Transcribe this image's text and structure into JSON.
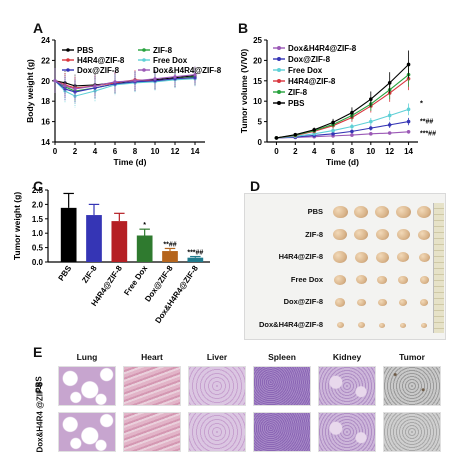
{
  "panels": {
    "A": "A",
    "B": "B",
    "C": "C",
    "D": "D",
    "E": "E"
  },
  "groups": [
    "PBS",
    "ZIF-8",
    "H4R4@ZIF-8",
    "Free Dox",
    "Dox@ZIF-8",
    "Dox&H4R4@ZIF-8"
  ],
  "colors": {
    "PBS": "#000000",
    "ZIF-8": "#27a23d",
    "H4R4@ZIF-8": "#d9363e",
    "Free Dox": "#5fd0d6",
    "Dox@ZIF-8": "#3535b5",
    "Dox&H4R4@ZIF-8": "#9b59b6"
  },
  "chart_data": [
    {
      "type": "line",
      "panel": "A",
      "xlabel": "Time (d)",
      "ylabel": "Body weight (g)",
      "xlim": [
        0,
        15
      ],
      "ylim": [
        14,
        24
      ],
      "xticks": [
        0,
        2,
        4,
        6,
        8,
        10,
        12,
        14
      ],
      "yticks": [
        14,
        16,
        18,
        20,
        22,
        24
      ],
      "legend": [
        "PBS",
        "H4R4@ZIF-8",
        "Dox@ZIF-8",
        "ZIF-8",
        "Free Dox",
        "Dox&H4R4@ZIF-8"
      ],
      "x": [
        0,
        1,
        2,
        4,
        6,
        8,
        10,
        12,
        14
      ],
      "series": [
        {
          "name": "PBS",
          "values": [
            20.0,
            19.8,
            19.5,
            19.6,
            19.8,
            20.0,
            20.1,
            20.3,
            20.5
          ]
        },
        {
          "name": "ZIF-8",
          "values": [
            20.0,
            19.4,
            19.0,
            19.3,
            19.7,
            19.9,
            20.0,
            20.2,
            20.4
          ]
        },
        {
          "name": "H4R4@ZIF-8",
          "values": [
            20.0,
            19.6,
            19.3,
            19.5,
            19.8,
            20.1,
            20.0,
            20.2,
            20.3
          ]
        },
        {
          "name": "Free Dox",
          "values": [
            20.0,
            19.0,
            18.5,
            19.0,
            19.6,
            19.8,
            19.9,
            20.1,
            20.2
          ]
        },
        {
          "name": "Dox@ZIF-8",
          "values": [
            20.0,
            19.2,
            18.9,
            19.3,
            19.7,
            19.9,
            20.0,
            20.2,
            20.3
          ]
        },
        {
          "name": "Dox&H4R4@ZIF-8",
          "values": [
            20.0,
            19.5,
            19.2,
            19.5,
            19.9,
            20.0,
            20.2,
            20.4,
            20.6
          ]
        }
      ]
    },
    {
      "type": "line",
      "panel": "B",
      "xlabel": "Time (d)",
      "ylabel": "Tumor volume (V/V0)",
      "xlim": [
        -1,
        15
      ],
      "ylim": [
        0,
        25
      ],
      "xticks": [
        0,
        2,
        4,
        6,
        8,
        10,
        12,
        14
      ],
      "yticks": [
        0,
        5,
        10,
        15,
        20,
        25
      ],
      "legend": [
        "Dox&H4R4@ZIF-8",
        "Dox@ZIF-8",
        "Free Dox",
        "H4R4@ZIF-8",
        "ZIF-8",
        "PBS"
      ],
      "x": [
        0,
        2,
        4,
        6,
        8,
        10,
        12,
        14
      ],
      "series": [
        {
          "name": "Dox&H4R4@ZIF-8",
          "values": [
            1.0,
            1.1,
            1.3,
            1.5,
            1.7,
            2.0,
            2.2,
            2.5
          ]
        },
        {
          "name": "Dox@ZIF-8",
          "values": [
            1.0,
            1.2,
            1.6,
            2.0,
            2.6,
            3.4,
            4.2,
            5.0
          ]
        },
        {
          "name": "Free Dox",
          "values": [
            1.0,
            1.4,
            2.0,
            2.8,
            3.8,
            5.0,
            6.5,
            8.0
          ]
        },
        {
          "name": "H4R4@ZIF-8",
          "values": [
            1.0,
            1.6,
            2.6,
            4.0,
            6.0,
            8.8,
            12.0,
            15.5
          ]
        },
        {
          "name": "ZIF-8",
          "values": [
            1.0,
            1.7,
            2.8,
            4.3,
            6.5,
            9.3,
            12.8,
            16.5
          ]
        },
        {
          "name": "PBS",
          "values": [
            1.0,
            1.8,
            3.0,
            4.8,
            7.2,
            10.5,
            14.5,
            19.0
          ]
        }
      ],
      "annotations": [
        "*",
        "**##",
        "***##"
      ]
    },
    {
      "type": "bar",
      "panel": "C",
      "ylabel": "Tumor weight (g)",
      "ylim": [
        0,
        2.5
      ],
      "yticks": [
        0.0,
        0.5,
        1.0,
        1.5,
        2.0,
        2.5
      ],
      "categories": [
        "PBS",
        "ZIF-8",
        "H4R4@ZIF-8",
        "Free Dox",
        "Dox@ZIF-8",
        "Dox&H4R4@ZIF-8"
      ],
      "values": [
        1.88,
        1.63,
        1.42,
        0.92,
        0.38,
        0.15
      ],
      "errors": [
        0.5,
        0.37,
        0.27,
        0.22,
        0.09,
        0.04
      ],
      "colors": [
        "#000000",
        "#3535b5",
        "#b51f24",
        "#2f7a2f",
        "#b5651d",
        "#1f7a8c"
      ],
      "annotations": [
        "",
        "",
        "",
        "*",
        "**##",
        "***##"
      ]
    }
  ],
  "photo_rows": [
    "PBS",
    "ZIF-8",
    "H4R4@ZIF-8",
    "Free Dox",
    "Dox@ZIF-8",
    "Dox&H4R4@ZIF-8"
  ],
  "histology": {
    "columns": [
      "Lung",
      "Heart",
      "Liver",
      "Spleen",
      "Kidney",
      "Tumor"
    ],
    "rows": [
      "PBS",
      "Dox&H4R4 @ZIF-8"
    ]
  }
}
